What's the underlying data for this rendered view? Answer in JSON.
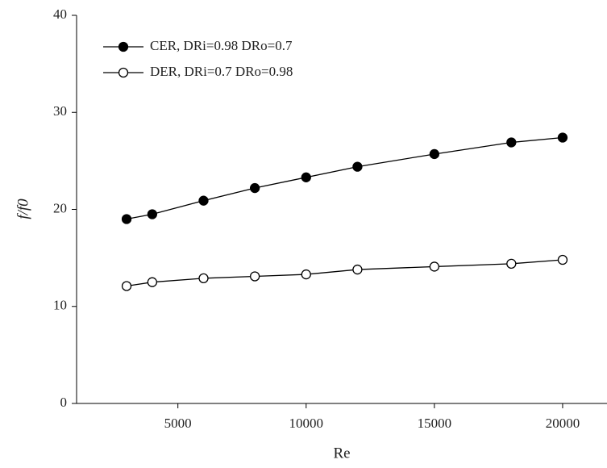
{
  "chart_data": {
    "type": "line",
    "x_label": "Re",
    "y_label": "f/f0",
    "x": [
      3000,
      4000,
      6000,
      8000,
      10000,
      12000,
      15000,
      18000,
      20000
    ],
    "series": [
      {
        "name": "CER, DRi=0.98  DRo=0.7",
        "color": "#000000",
        "marker": "filled",
        "values": [
          19.0,
          19.5,
          20.9,
          22.2,
          23.3,
          24.4,
          25.7,
          26.9,
          27.4
        ]
      },
      {
        "name": "DER, DRi=0.7  DRo=0.98",
        "color": "#000000",
        "marker": "open",
        "values": [
          12.1,
          12.5,
          12.9,
          13.1,
          13.3,
          13.8,
          14.1,
          14.4,
          14.8
        ]
      }
    ],
    "xlim": [
      1050,
      21730
    ],
    "ylim": [
      0,
      40
    ],
    "xticks": [
      5000,
      10000,
      15000,
      20000
    ],
    "yticks": [
      0,
      10,
      20,
      30,
      40
    ],
    "legend": "upper left"
  }
}
